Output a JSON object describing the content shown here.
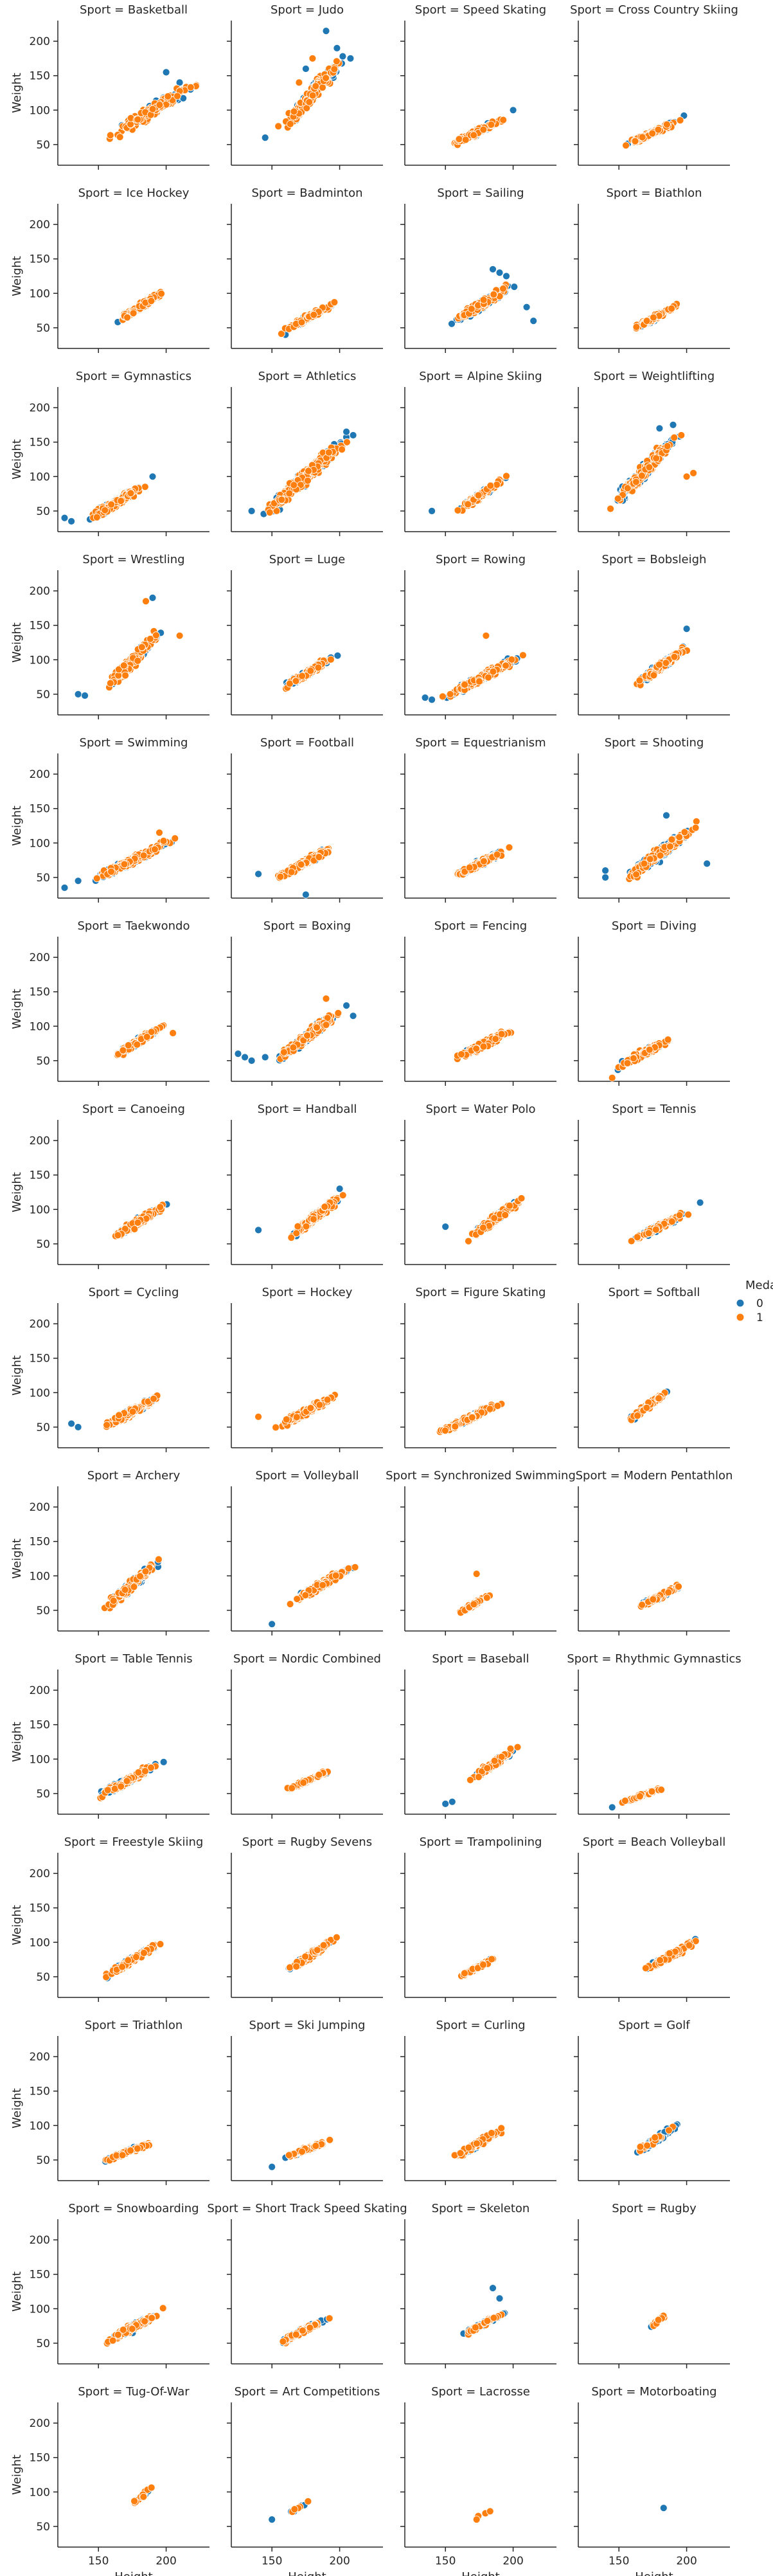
{
  "chart_data": {
    "type": "scatter",
    "facet": "Sport",
    "x_label": "Height",
    "y_label": "Weight",
    "xlim": [
      120,
      232
    ],
    "ylim": [
      20,
      230
    ],
    "x_ticks": [
      150,
      200
    ],
    "y_ticks": [
      50,
      100,
      150,
      200
    ],
    "legend": {
      "title": "Medal",
      "placement": "right",
      "items": [
        {
          "label": "0",
          "color": "#1f77b4"
        },
        {
          "label": "1",
          "color": "#ff7f0e"
        }
      ]
    },
    "series_colors": {
      "0": "#1f77b4",
      "1": "#ff7f0e"
    },
    "panels": [
      {
        "title": "Sport = Basketball",
        "x": [
          150,
          230
        ],
        "y": [
          50,
          150
        ],
        "n0": 60,
        "n1": 140,
        "out0": [
          [
            200,
            155
          ],
          [
            210,
            140
          ],
          [
            218,
            130
          ]
        ],
        "out1": []
      },
      {
        "title": "Sport = Judo",
        "x": [
          148,
          212
        ],
        "y": [
          50,
          200
        ],
        "n0": 110,
        "n1": 140,
        "out0": [
          [
            190,
            215
          ],
          [
            198,
            190
          ],
          [
            208,
            175
          ],
          [
            175,
            160
          ],
          [
            195,
            150
          ],
          [
            145,
            60
          ]
        ],
        "out1": [
          [
            180,
            175
          ],
          [
            170,
            140
          ]
        ]
      },
      {
        "title": "Sport = Speed Skating",
        "x": [
          150,
          200
        ],
        "y": [
          45,
          95
        ],
        "n0": 40,
        "n1": 110,
        "out0": [
          [
            200,
            100
          ]
        ],
        "out1": []
      },
      {
        "title": "Sport = Cross Country Skiing",
        "x": [
          150,
          198
        ],
        "y": [
          45,
          88
        ],
        "n0": 50,
        "n1": 110,
        "out0": [
          [
            198,
            92
          ]
        ],
        "out1": []
      },
      {
        "title": "Sport = Ice Hockey",
        "x": [
          160,
          205
        ],
        "y": [
          55,
          110
        ],
        "n0": 30,
        "n1": 160,
        "out0": [],
        "out1": []
      },
      {
        "title": "Sport = Badminton",
        "x": [
          155,
          200
        ],
        "y": [
          42,
          90
        ],
        "n0": 60,
        "n1": 70,
        "out0": [
          [
            160,
            40
          ]
        ],
        "out1": []
      },
      {
        "title": "Sport = Sailing",
        "x": [
          150,
          205
        ],
        "y": [
          50,
          120
        ],
        "n0": 130,
        "n1": 140,
        "out0": [
          [
            210,
            80
          ],
          [
            215,
            60
          ],
          [
            190,
            130
          ],
          [
            195,
            125
          ],
          [
            185,
            135
          ]
        ],
        "out1": []
      },
      {
        "title": "Sport = Biathlon",
        "x": [
          158,
          198
        ],
        "y": [
          45,
          88
        ],
        "n0": 45,
        "n1": 110,
        "out0": [],
        "out1": []
      },
      {
        "title": "Sport = Gymnastics",
        "x": [
          135,
          190
        ],
        "y": [
          28,
          95
        ],
        "n0": 80,
        "n1": 110,
        "out0": [
          [
            130,
            35
          ],
          [
            125,
            40
          ],
          [
            190,
            100
          ]
        ],
        "out1": []
      },
      {
        "title": "Sport = Athletics",
        "x": [
          140,
          210
        ],
        "y": [
          35,
          165
        ],
        "n0": 180,
        "n1": 260,
        "out0": [
          [
            135,
            50
          ],
          [
            205,
            165
          ],
          [
            210,
            160
          ]
        ],
        "out1": []
      },
      {
        "title": "Sport = Alpine Skiing",
        "x": [
          155,
          200
        ],
        "y": [
          45,
          105
        ],
        "n0": 40,
        "n1": 110,
        "out0": [
          [
            140,
            50
          ]
        ],
        "out1": []
      },
      {
        "title": "Sport = Weightlifting",
        "x": [
          140,
          200
        ],
        "y": [
          45,
          175
        ],
        "n0": 110,
        "n1": 150,
        "out0": [
          [
            190,
            175
          ],
          [
            180,
            170
          ]
        ],
        "out1": [
          [
            205,
            105
          ],
          [
            200,
            100
          ]
        ]
      },
      {
        "title": "Sport = Wrestling",
        "x": [
          150,
          200
        ],
        "y": [
          45,
          150
        ],
        "n0": 110,
        "n1": 160,
        "out0": [
          [
            135,
            50
          ],
          [
            140,
            48
          ],
          [
            190,
            190
          ]
        ],
        "out1": [
          [
            185,
            185
          ],
          [
            210,
            135
          ]
        ]
      },
      {
        "title": "Sport = Luge",
        "x": [
          155,
          200
        ],
        "y": [
          55,
          110
        ],
        "n0": 70,
        "n1": 90,
        "out0": [],
        "out1": []
      },
      {
        "title": "Sport = Rowing",
        "x": [
          145,
          210
        ],
        "y": [
          40,
          110
        ],
        "n0": 90,
        "n1": 200,
        "out0": [
          [
            135,
            45
          ],
          [
            140,
            42
          ]
        ],
        "out1": [
          [
            180,
            135
          ]
        ]
      },
      {
        "title": "Sport = Bobsleigh",
        "x": [
          160,
          205
        ],
        "y": [
          60,
          125
        ],
        "n0": 90,
        "n1": 130,
        "out0": [
          [
            200,
            145
          ]
        ],
        "out1": []
      },
      {
        "title": "Sport = Swimming",
        "x": [
          140,
          210
        ],
        "y": [
          40,
          110
        ],
        "n0": 130,
        "n1": 200,
        "out0": [
          [
            125,
            35
          ],
          [
            135,
            45
          ]
        ],
        "out1": [
          [
            195,
            115
          ]
        ]
      },
      {
        "title": "Sport = Football",
        "x": [
          150,
          200
        ],
        "y": [
          45,
          100
        ],
        "n0": 70,
        "n1": 200,
        "out0": [
          [
            140,
            55
          ],
          [
            175,
            25
          ]
        ],
        "out1": []
      },
      {
        "title": "Sport = Equestrianism",
        "x": [
          150,
          200
        ],
        "y": [
          45,
          95
        ],
        "n0": 70,
        "n1": 160,
        "out0": [],
        "out1": []
      },
      {
        "title": "Sport = Shooting",
        "x": [
          150,
          210
        ],
        "y": [
          40,
          130
        ],
        "n0": 220,
        "n1": 150,
        "out0": [
          [
            140,
            60
          ],
          [
            140,
            50
          ],
          [
            215,
            70
          ],
          [
            185,
            140
          ]
        ],
        "out1": []
      },
      {
        "title": "Sport = Taekwondo",
        "x": [
          155,
          205
        ],
        "y": [
          48,
          110
        ],
        "n0": 50,
        "n1": 100,
        "out0": [],
        "out1": [
          [
            205,
            90
          ]
        ]
      },
      {
        "title": "Sport = Boxing",
        "x": [
          150,
          205
        ],
        "y": [
          45,
          130
        ],
        "n0": 170,
        "n1": 150,
        "out0": [
          [
            125,
            60
          ],
          [
            130,
            55
          ],
          [
            135,
            50
          ],
          [
            145,
            55
          ],
          [
            205,
            130
          ],
          [
            210,
            115
          ]
        ],
        "out1": [
          [
            190,
            140
          ]
        ]
      },
      {
        "title": "Sport = Fencing",
        "x": [
          155,
          205
        ],
        "y": [
          50,
          100
        ],
        "n0": 50,
        "n1": 200,
        "out0": [],
        "out1": []
      },
      {
        "title": "Sport = Diving",
        "x": [
          140,
          195
        ],
        "y": [
          30,
          90
        ],
        "n0": 50,
        "n1": 90,
        "out0": [],
        "out1": [
          [
            145,
            25
          ]
        ]
      },
      {
        "title": "Sport = Canoeing",
        "x": [
          155,
          205
        ],
        "y": [
          50,
          115
        ],
        "n0": 60,
        "n1": 170,
        "out0": [],
        "out1": []
      },
      {
        "title": "Sport = Handball",
        "x": [
          160,
          205
        ],
        "y": [
          55,
          125
        ],
        "n0": 60,
        "n1": 220,
        "out0": [
          [
            140,
            70
          ],
          [
            200,
            130
          ]
        ],
        "out1": []
      },
      {
        "title": "Sport = Water Polo",
        "x": [
          165,
          210
        ],
        "y": [
          55,
          120
        ],
        "n0": 50,
        "n1": 200,
        "out0": [
          [
            150,
            75
          ]
        ],
        "out1": []
      },
      {
        "title": "Sport = Tennis",
        "x": [
          155,
          205
        ],
        "y": [
          50,
          100
        ],
        "n0": 80,
        "n1": 80,
        "out0": [
          [
            210,
            110
          ]
        ],
        "out1": []
      },
      {
        "title": "Sport = Cycling",
        "x": [
          150,
          200
        ],
        "y": [
          45,
          100
        ],
        "n0": 90,
        "n1": 200,
        "out0": [
          [
            130,
            55
          ],
          [
            135,
            50
          ]
        ],
        "out1": []
      },
      {
        "title": "Sport = Hockey",
        "x": [
          150,
          200
        ],
        "y": [
          45,
          100
        ],
        "n0": 60,
        "n1": 200,
        "out0": [],
        "out1": [
          [
            140,
            65
          ]
        ]
      },
      {
        "title": "Sport = Figure Skating",
        "x": [
          140,
          195
        ],
        "y": [
          35,
          90
        ],
        "n0": 40,
        "n1": 160,
        "out0": [],
        "out1": []
      },
      {
        "title": "Sport = Softball",
        "x": [
          155,
          190
        ],
        "y": [
          55,
          110
        ],
        "n0": 30,
        "n1": 60,
        "out0": [],
        "out1": []
      },
      {
        "title": "Sport = Archery",
        "x": [
          150,
          200
        ],
        "y": [
          45,
          130
        ],
        "n0": 140,
        "n1": 120,
        "out0": [],
        "out1": []
      },
      {
        "title": "Sport = Volleyball",
        "x": [
          160,
          215
        ],
        "y": [
          55,
          120
        ],
        "n0": 60,
        "n1": 200,
        "out0": [
          [
            150,
            30
          ]
        ],
        "out1": []
      },
      {
        "title": "Sport = Synchronized Swimming",
        "x": [
          155,
          185
        ],
        "y": [
          40,
          75
        ],
        "n0": 15,
        "n1": 60,
        "out0": [],
        "out1": [
          [
            173,
            103
          ]
        ]
      },
      {
        "title": "Sport = Modern Pentathlon",
        "x": [
          160,
          200
        ],
        "y": [
          50,
          90
        ],
        "n0": 40,
        "n1": 100,
        "out0": [],
        "out1": []
      },
      {
        "title": "Sport = Table Tennis",
        "x": [
          145,
          200
        ],
        "y": [
          40,
          100
        ],
        "n0": 80,
        "n1": 120,
        "out0": [],
        "out1": []
      },
      {
        "title": "Sport = Nordic Combined",
        "x": [
          160,
          195
        ],
        "y": [
          55,
          85
        ],
        "n0": 20,
        "n1": 90,
        "out0": [],
        "out1": []
      },
      {
        "title": "Sport = Baseball",
        "x": [
          165,
          205
        ],
        "y": [
          65,
          120
        ],
        "n0": 60,
        "n1": 160,
        "out0": [
          [
            150,
            35
          ],
          [
            155,
            38
          ]
        ],
        "out1": []
      },
      {
        "title": "Sport = Rhythmic Gymnastics",
        "x": [
          150,
          185
        ],
        "y": [
          35,
          60
        ],
        "n0": 25,
        "n1": 60,
        "out0": [
          [
            145,
            30
          ]
        ],
        "out1": []
      },
      {
        "title": "Sport = Freestyle Skiing",
        "x": [
          150,
          200
        ],
        "y": [
          45,
          105
        ],
        "n0": 60,
        "n1": 90,
        "out0": [],
        "out1": []
      },
      {
        "title": "Sport = Rugby Sevens",
        "x": [
          155,
          200
        ],
        "y": [
          50,
          110
        ],
        "n0": 50,
        "n1": 90,
        "out0": [],
        "out1": []
      },
      {
        "title": "Sport = Trampolining",
        "x": [
          155,
          190
        ],
        "y": [
          45,
          80
        ],
        "n0": 20,
        "n1": 50,
        "out0": [],
        "out1": []
      },
      {
        "title": "Sport = Beach Volleyball",
        "x": [
          165,
          215
        ],
        "y": [
          55,
          110
        ],
        "n0": 70,
        "n1": 100,
        "out0": [],
        "out1": []
      },
      {
        "title": "Sport = Triathlon",
        "x": [
          150,
          195
        ],
        "y": [
          45,
          80
        ],
        "n0": 40,
        "n1": 80,
        "out0": [],
        "out1": []
      },
      {
        "title": "Sport = Ski Jumping",
        "x": [
          155,
          195
        ],
        "y": [
          50,
          80
        ],
        "n0": 40,
        "n1": 90,
        "out0": [
          [
            150,
            40
          ]
        ],
        "out1": []
      },
      {
        "title": "Sport = Curling",
        "x": [
          150,
          200
        ],
        "y": [
          45,
          105
        ],
        "n0": 50,
        "n1": 100,
        "out0": [],
        "out1": []
      },
      {
        "title": "Sport = Golf",
        "x": [
          155,
          200
        ],
        "y": [
          50,
          110
        ],
        "n0": 80,
        "n1": 20,
        "out0": [],
        "out1": []
      },
      {
        "title": "Sport = Snowboarding",
        "x": [
          150,
          200
        ],
        "y": [
          45,
          100
        ],
        "n0": 60,
        "n1": 100,
        "out0": [],
        "out1": []
      },
      {
        "title": "Sport = Short Track Speed Skating",
        "x": [
          150,
          195
        ],
        "y": [
          45,
          90
        ],
        "n0": 40,
        "n1": 110,
        "out0": [],
        "out1": []
      },
      {
        "title": "Sport = Skeleton",
        "x": [
          155,
          200
        ],
        "y": [
          55,
          100
        ],
        "n0": 35,
        "n1": 30,
        "out0": [
          [
            185,
            130
          ],
          [
            190,
            115
          ]
        ],
        "out1": []
      },
      {
        "title": "Sport = Rugby",
        "x": [
          170,
          190
        ],
        "y": [
          68,
          100
        ],
        "n0": 3,
        "n1": 25,
        "out0": [],
        "out1": []
      },
      {
        "title": "Sport = Tug-Of-War",
        "x": [
          170,
          195
        ],
        "y": [
          75,
          115
        ],
        "n0": 10,
        "n1": 12,
        "out0": [],
        "out1": []
      },
      {
        "title": "Sport = Art Competitions",
        "x": [
          155,
          185
        ],
        "y": [
          60,
          95
        ],
        "n0": 8,
        "n1": 6,
        "out0": [
          [
            150,
            60
          ]
        ],
        "out1": []
      },
      {
        "title": "Sport = Lacrosse",
        "x": [
          170,
          185
        ],
        "y": [
          60,
          75
        ],
        "n0": 0,
        "n1": 2,
        "out0": [],
        "out1": [
          [
            173,
            60
          ],
          [
            183,
            72
          ]
        ]
      },
      {
        "title": "Sport = Motorboating",
        "x": [
          183,
          183
        ],
        "y": [
          77,
          77
        ],
        "n0": 1,
        "n1": 0,
        "out0": [],
        "out1": []
      }
    ]
  }
}
